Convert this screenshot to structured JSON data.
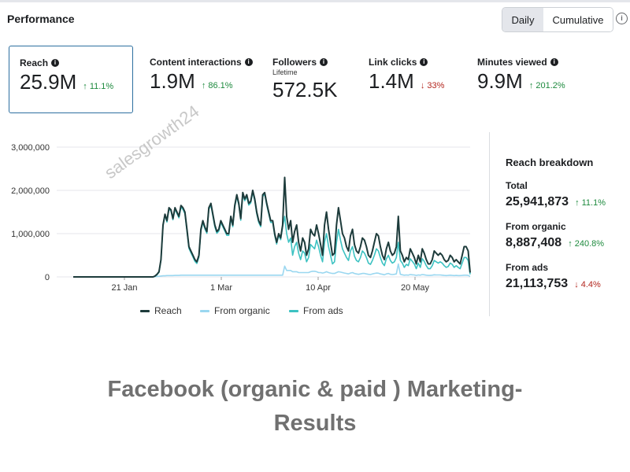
{
  "header": {
    "title": "Performance",
    "toggle_daily": "Daily",
    "toggle_cumulative": "Cumulative",
    "info_icon": "info-icon"
  },
  "kpis": [
    {
      "label": "Reach",
      "value": "25.9M",
      "change": "↑ 11.1%",
      "direction": "up"
    },
    {
      "label": "Content interactions",
      "value": "1.9M",
      "change": "↑ 86.1%",
      "direction": "up"
    },
    {
      "label": "Followers",
      "sublabel": "Lifetime",
      "value": "572.5K"
    },
    {
      "label": "Link clicks",
      "value": "1.4M",
      "change": "↓ 33%",
      "direction": "down"
    },
    {
      "label": "Minutes viewed",
      "value": "9.9M",
      "change": "↑ 201.2%",
      "direction": "up"
    }
  ],
  "breakdown": {
    "title": "Reach breakdown",
    "total_label": "Total",
    "total_value": "25,941,873",
    "total_change": "↑ 11.1%",
    "organic_label": "From organic",
    "organic_value": "8,887,408",
    "organic_change": "↑ 240.8%",
    "ads_label": "From ads",
    "ads_value": "21,113,753",
    "ads_change": "↓ 4.4%"
  },
  "legend": {
    "reach": "Reach",
    "organic": "From organic",
    "ads": "From ads"
  },
  "colors": {
    "reach": "#1d3b3b",
    "organic": "#9ad7f0",
    "ads": "#3cc2c2",
    "up": "#1e8a3e",
    "down": "#b3261e"
  },
  "watermark": "salesgrowth24",
  "caption_line1": "Facebook (organic & paid ) Marketing-",
  "caption_line2": "Results",
  "chart_data": {
    "type": "line",
    "y_ticks": [
      "3,000,000",
      "2,000,000",
      "1,000,000",
      "0"
    ],
    "x_ticks": [
      "21 Jan",
      "1 Mar",
      "10 Apr",
      "20 May"
    ],
    "ylim": [
      0,
      3000000
    ],
    "series": [
      {
        "name": "Reach",
        "values": [
          0,
          0,
          0,
          0,
          0,
          0,
          0,
          0,
          0,
          0,
          0,
          0,
          0,
          0,
          0,
          0,
          0,
          0,
          0,
          0,
          0,
          0,
          0,
          0,
          0,
          0,
          0,
          0,
          0,
          0,
          0,
          0,
          0,
          0,
          0,
          0,
          0,
          0,
          0,
          0,
          0,
          20000,
          60000,
          120000,
          400000,
          1200000,
          1450000,
          1300000,
          1600000,
          1550000,
          1350000,
          1600000,
          1500000,
          1400000,
          1650000,
          1600000,
          1500000,
          1100000,
          700000,
          600000,
          500000,
          400000,
          350000,
          500000,
          1100000,
          1300000,
          1150000,
          1050000,
          1600000,
          1700000,
          1450000,
          1200000,
          1050000,
          1100000,
          1300000,
          1200000,
          1100000,
          1000000,
          1000000,
          1400000,
          1200000,
          1650000,
          1900000,
          1700000,
          1350000,
          1950000,
          1800000,
          1900000,
          1700000,
          1750000,
          2000000,
          1800000,
          1500000,
          1300000,
          1200000,
          1900000,
          1950000,
          1700000,
          1500000,
          1300000,
          1300000,
          1000000,
          800000,
          1000000,
          900000,
          1200000,
          2300000,
          1400000,
          1100000,
          1300000,
          800000,
          1050000,
          1200000,
          800000,
          600000,
          900000,
          800000,
          500000,
          650000,
          1100000,
          1000000,
          950000,
          1200000,
          1000000,
          750000,
          500000,
          1200000,
          1500000,
          1100000,
          800000,
          500000,
          550000,
          1200000,
          1600000,
          1300000,
          1000000,
          900000,
          700000,
          600000,
          950000,
          1100000,
          750000,
          600000,
          550000,
          700000,
          900000,
          850000,
          700000,
          500000,
          450000,
          600000,
          800000,
          1000000,
          950000,
          700000,
          500000,
          400000,
          650000,
          800000,
          600000,
          500000,
          550000,
          700000,
          1400000,
          600000,
          500000,
          350000,
          450000,
          400000,
          650000,
          550000,
          450000,
          300000,
          500000,
          350000,
          650000,
          550000,
          400000,
          300000,
          300000,
          400000,
          600000,
          550000,
          500000,
          550000,
          500000,
          400000,
          350000,
          380000,
          500000,
          450000,
          350000,
          400000,
          350000,
          300000,
          500000,
          700000,
          700000,
          600000,
          100000
        ]
      },
      {
        "name": "From organic",
        "values": [
          0,
          0,
          0,
          0,
          0,
          0,
          0,
          0,
          0,
          0,
          0,
          0,
          0,
          0,
          0,
          0,
          0,
          0,
          0,
          0,
          0,
          0,
          0,
          0,
          0,
          0,
          0,
          0,
          0,
          0,
          0,
          0,
          0,
          0,
          0,
          0,
          0,
          0,
          0,
          0,
          0,
          5000,
          10000,
          15000,
          20000,
          25000,
          25000,
          30000,
          30000,
          30000,
          30000,
          35000,
          35000,
          35000,
          40000,
          40000,
          40000,
          40000,
          40000,
          40000,
          40000,
          40000,
          40000,
          40000,
          40000,
          40000,
          40000,
          40000,
          40000,
          40000,
          40000,
          40000,
          40000,
          40000,
          40000,
          40000,
          40000,
          40000,
          40000,
          40000,
          40000,
          40000,
          40000,
          40000,
          40000,
          40000,
          40000,
          40000,
          40000,
          40000,
          40000,
          40000,
          40000,
          40000,
          40000,
          40000,
          40000,
          40000,
          40000,
          40000,
          40000,
          40000,
          40000,
          40000,
          40000,
          40000,
          250000,
          150000,
          150000,
          150000,
          120000,
          120000,
          120000,
          100000,
          100000,
          100000,
          100000,
          100000,
          100000,
          120000,
          130000,
          130000,
          120000,
          100000,
          100000,
          90000,
          100000,
          120000,
          100000,
          90000,
          80000,
          80000,
          100000,
          120000,
          110000,
          100000,
          90000,
          80000,
          70000,
          90000,
          100000,
          80000,
          70000,
          60000,
          70000,
          80000,
          80000,
          70000,
          60000,
          55000,
          70000,
          80000,
          90000,
          85000,
          70000,
          60000,
          50000,
          70000,
          80000,
          60000,
          55000,
          60000,
          70000,
          300000,
          60000,
          50000,
          40000,
          45000,
          40000,
          55000,
          50000,
          45000,
          35000,
          45000,
          40000,
          55000,
          50000,
          40000,
          35000,
          35000,
          40000,
          50000,
          45000,
          45000,
          45000,
          40000,
          35000,
          30000,
          35000,
          40000,
          35000,
          30000,
          35000,
          30000,
          30000,
          35000,
          40000,
          40000,
          35000,
          10000
        ]
      },
      {
        "name": "From ads",
        "values": [
          0,
          0,
          0,
          0,
          0,
          0,
          0,
          0,
          0,
          0,
          0,
          0,
          0,
          0,
          0,
          0,
          0,
          0,
          0,
          0,
          0,
          0,
          0,
          0,
          0,
          0,
          0,
          0,
          0,
          0,
          0,
          0,
          0,
          0,
          0,
          0,
          0,
          0,
          0,
          0,
          0,
          15000,
          50000,
          105000,
          380000,
          1175000,
          1425000,
          1270000,
          1570000,
          1520000,
          1320000,
          1565000,
          1465000,
          1365000,
          1610000,
          1560000,
          1460000,
          1060000,
          660000,
          560000,
          460000,
          360000,
          310000,
          460000,
          1060000,
          1260000,
          1110000,
          1010000,
          1560000,
          1660000,
          1410000,
          1160000,
          1010000,
          1060000,
          1260000,
          1160000,
          1060000,
          960000,
          960000,
          1360000,
          1160000,
          1610000,
          1860000,
          1660000,
          1310000,
          1910000,
          1760000,
          1860000,
          1660000,
          1710000,
          1960000,
          1760000,
          1460000,
          1260000,
          1160000,
          1860000,
          1910000,
          1660000,
          1460000,
          1260000,
          1260000,
          960000,
          760000,
          960000,
          860000,
          1160000,
          1400000,
          1000000,
          800000,
          900000,
          500000,
          700000,
          800000,
          550000,
          400000,
          600000,
          550000,
          350000,
          450000,
          750000,
          700000,
          650000,
          850000,
          700000,
          500000,
          350000,
          800000,
          1000000,
          700000,
          500000,
          300000,
          350000,
          800000,
          1100000,
          850000,
          650000,
          550000,
          450000,
          380000,
          600000,
          700000,
          480000,
          380000,
          350000,
          450000,
          600000,
          550000,
          450000,
          320000,
          290000,
          380000,
          500000,
          650000,
          600000,
          450000,
          320000,
          260000,
          420000,
          500000,
          380000,
          320000,
          350000,
          450000,
          800000,
          380000,
          320000,
          220000,
          290000,
          260000,
          420000,
          360000,
          300000,
          190000,
          320000,
          220000,
          420000,
          360000,
          260000,
          190000,
          190000,
          260000,
          380000,
          350000,
          320000,
          350000,
          320000,
          260000,
          220000,
          240000,
          320000,
          290000,
          220000,
          260000,
          220000,
          190000,
          320000,
          450000,
          450000,
          380000,
          60000
        ]
      }
    ]
  }
}
